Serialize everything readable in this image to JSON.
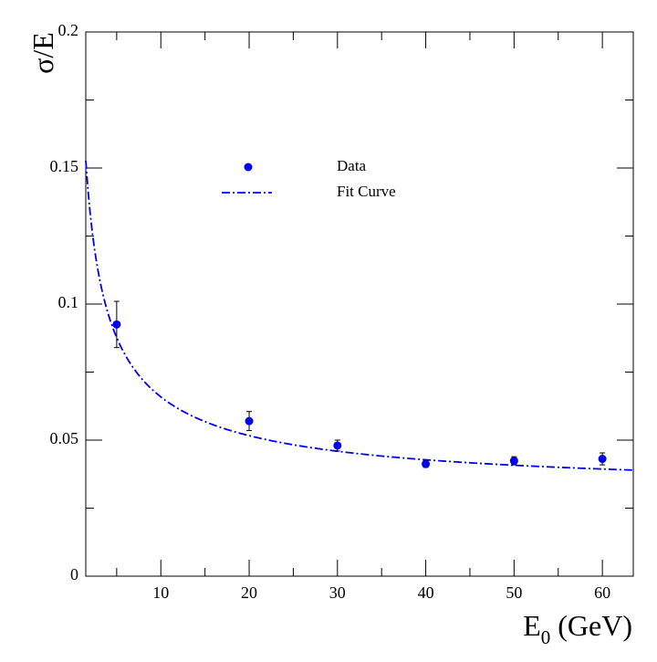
{
  "chart_data": {
    "type": "scatter",
    "title": "",
    "xlabel": "E",
    "xlabel_subscript": "0",
    "xlabel_unit": " (GeV)",
    "ylabel": "σ/E",
    "xlim": [
      1.5,
      63.5
    ],
    "ylim": [
      0,
      0.2
    ],
    "x_ticks": [
      10,
      20,
      30,
      40,
      50,
      60
    ],
    "y_ticks": [
      0,
      0.05,
      0.1,
      0.15,
      0.2
    ],
    "x_tick_labels": [
      "10",
      "20",
      "30",
      "40",
      "50",
      "60"
    ],
    "y_tick_labels": [
      "0",
      "0.05",
      "0.1",
      "0.15",
      "0.2"
    ],
    "x_minor_step": 5,
    "y_minor_step": 0.025,
    "grid": false,
    "legend_position": "upper-center",
    "series": [
      {
        "name": "Data",
        "kind": "points-with-errors",
        "color": "#0000ee",
        "x": [
          5,
          20,
          30,
          40,
          50,
          60
        ],
        "y": [
          0.0925,
          0.057,
          0.048,
          0.0412,
          0.0424,
          0.0431
        ],
        "yerr": [
          0.0085,
          0.0035,
          0.002,
          0.0012,
          0.0015,
          0.0022
        ]
      },
      {
        "name": "Fit Curve",
        "kind": "function",
        "color": "#0000ee",
        "style": "dash-dot",
        "formula": "sqrt((a/sqrt(E))^2 + b^2)",
        "params": {
          "a": 0.183,
          "b": 0.0315
        }
      }
    ]
  }
}
